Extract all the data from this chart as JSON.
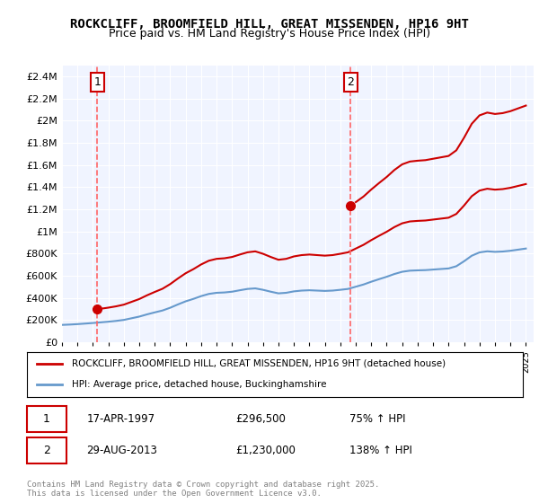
{
  "title1": "ROCKCLIFF, BROOMFIELD HILL, GREAT MISSENDEN, HP16 9HT",
  "title2": "Price paid vs. HM Land Registry's House Price Index (HPI)",
  "legend_label1": "ROCKCLIFF, BROOMFIELD HILL, GREAT MISSENDEN, HP16 9HT (detached house)",
  "legend_label2": "HPI: Average price, detached house, Buckinghamshire",
  "sale1_label": "1",
  "sale1_date": "17-APR-1997",
  "sale1_price": "£296,500",
  "sale1_hpi": "75% ↑ HPI",
  "sale2_label": "2",
  "sale2_date": "29-AUG-2013",
  "sale2_price": "£1,230,000",
  "sale2_hpi": "138% ↑ HPI",
  "footer": "Contains HM Land Registry data © Crown copyright and database right 2025.\nThis data is licensed under the Open Government Licence v3.0.",
  "line_color_red": "#cc0000",
  "line_color_blue": "#6699cc",
  "dashed_color": "#ff6666",
  "marker_color": "#cc0000",
  "background_color": "#f0f4ff",
  "plot_bg_color": "#f0f4ff",
  "ylim": [
    0,
    2500000
  ],
  "yticks": [
    0,
    200000,
    400000,
    600000,
    800000,
    1000000,
    1200000,
    1400000,
    1600000,
    1800000,
    2000000,
    2200000,
    2400000
  ],
  "ytick_labels": [
    "£0",
    "£200K",
    "£400K",
    "£600K",
    "£800K",
    "£1M",
    "£1.2M",
    "£1.4M",
    "£1.6M",
    "£1.8M",
    "£2M",
    "£2.2M",
    "£2.4M"
  ],
  "xlim": [
    1995.0,
    2025.5
  ],
  "sale1_x": 1997.29,
  "sale1_y": 296500,
  "sale2_x": 2013.66,
  "sale2_y": 1230000
}
